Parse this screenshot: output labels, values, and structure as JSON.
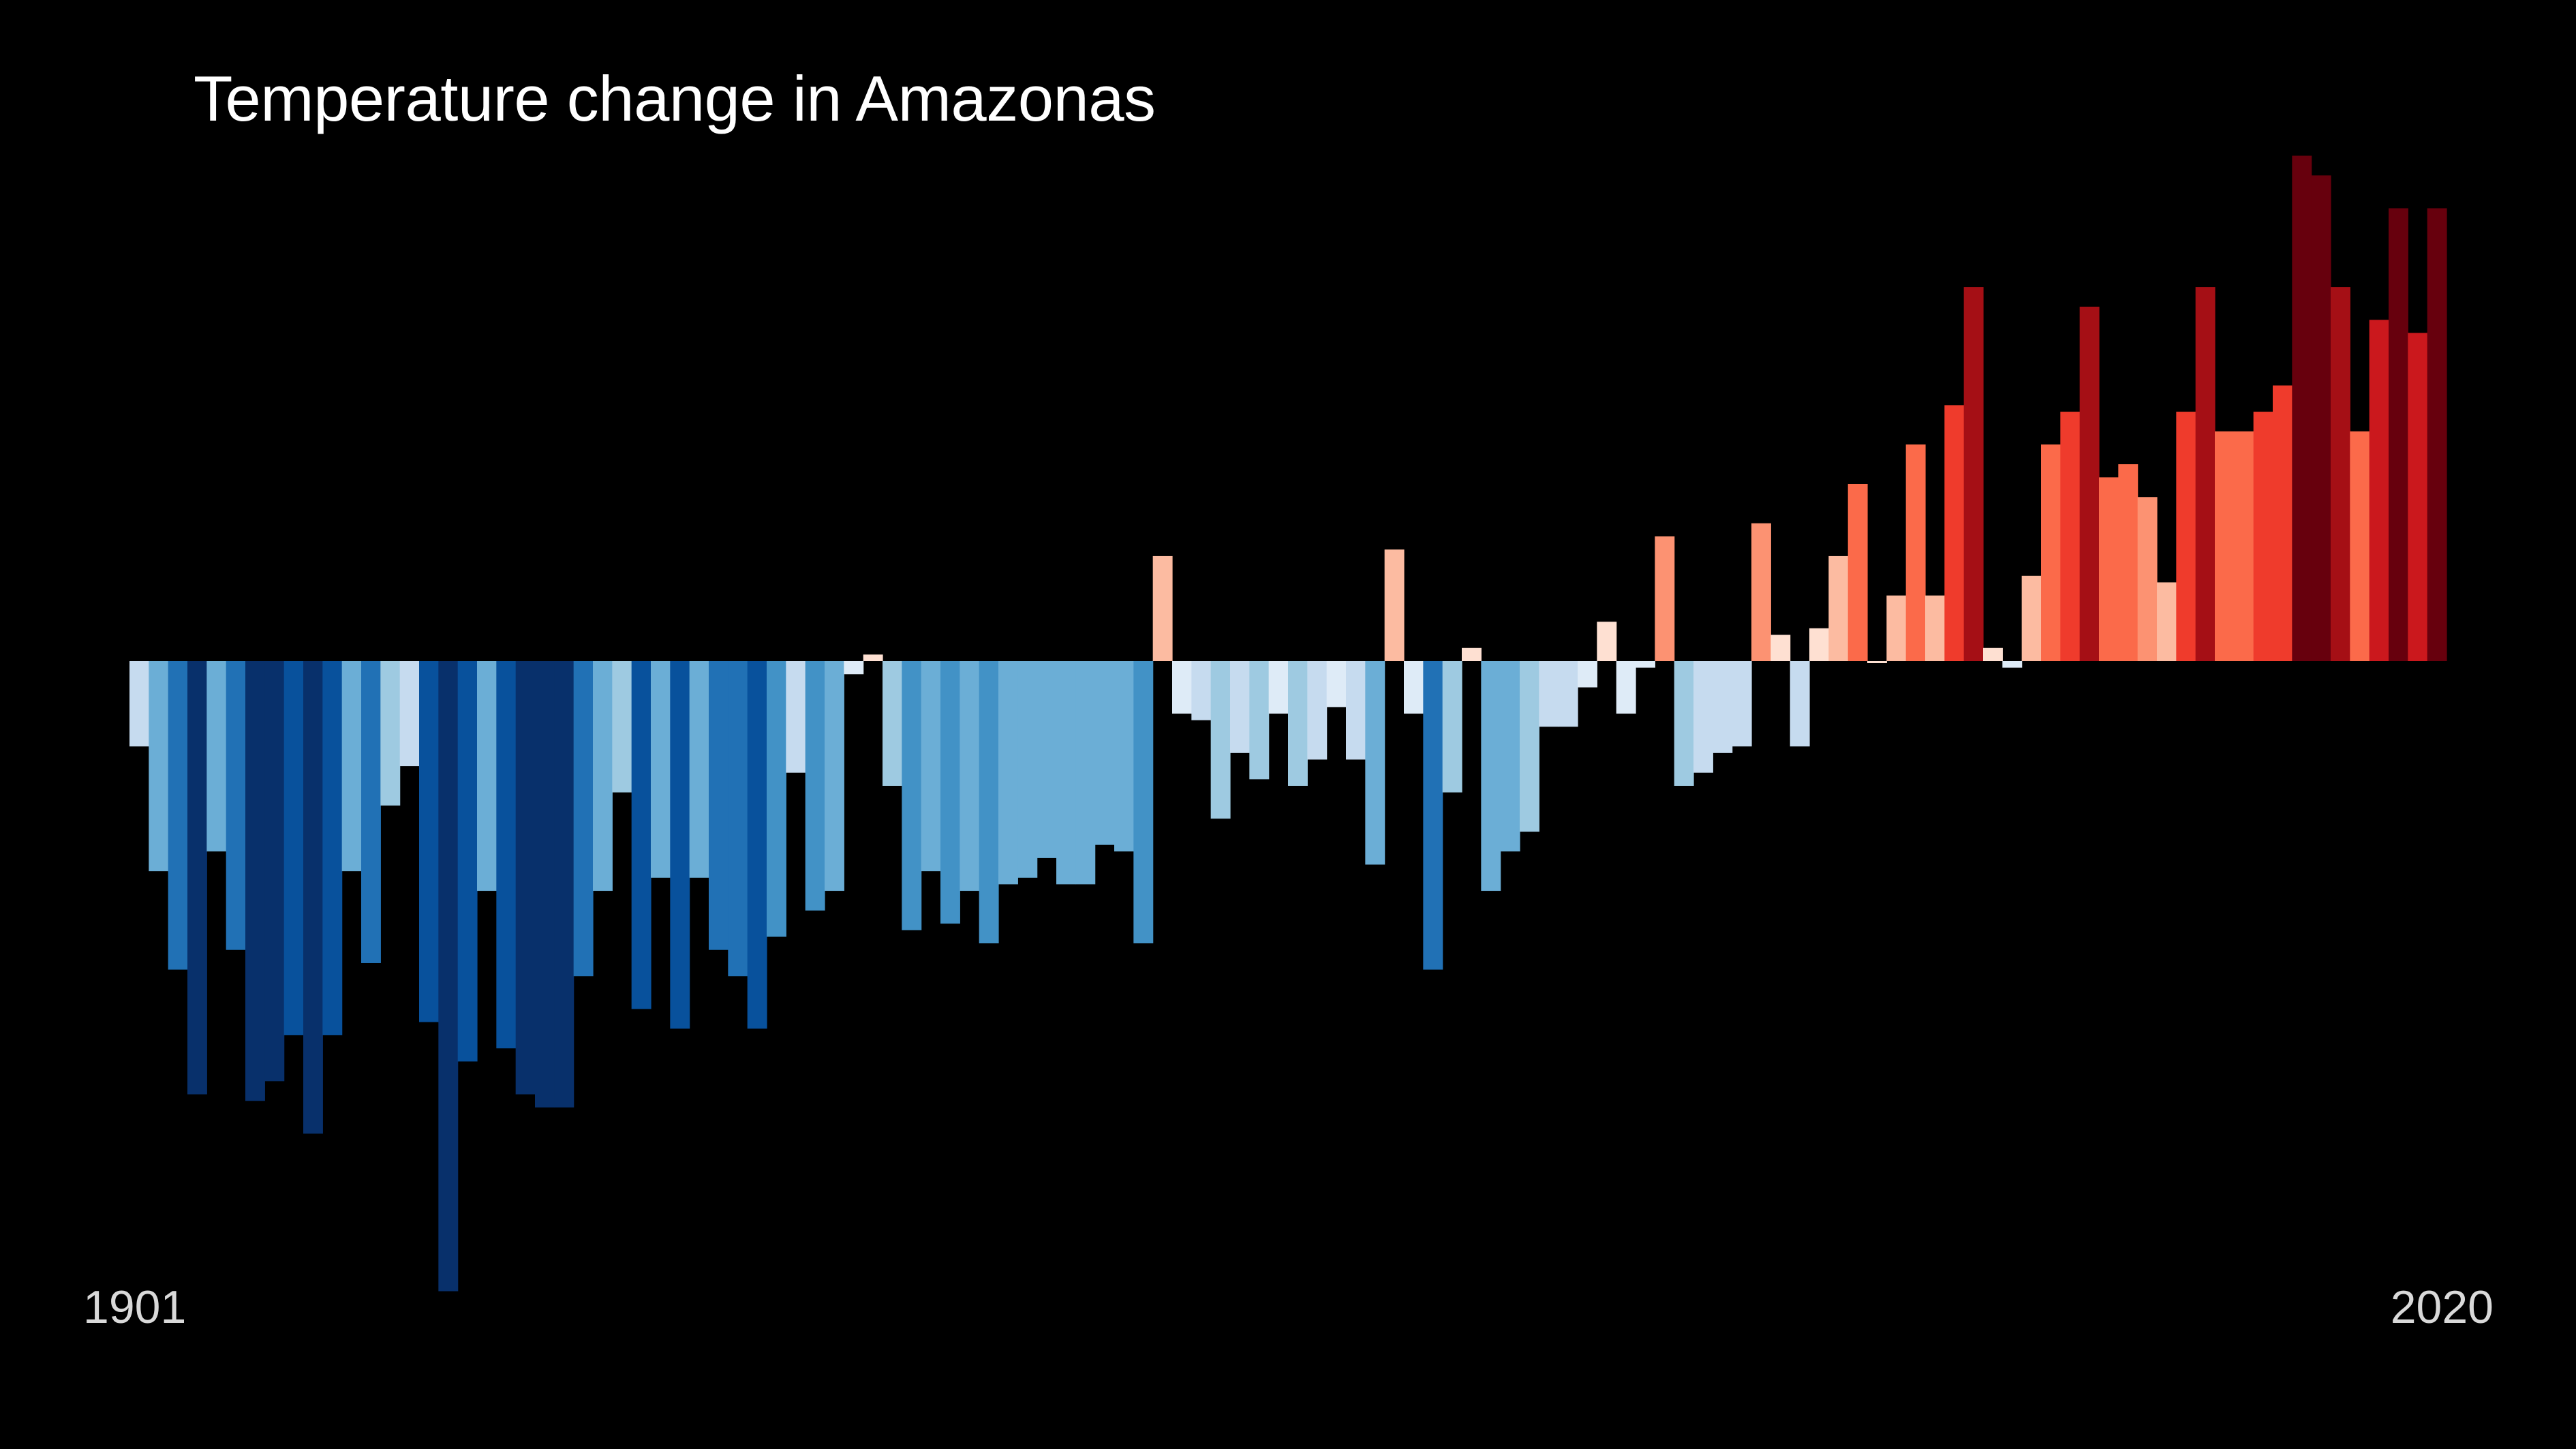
{
  "chart_data": {
    "type": "bar",
    "title": "Temperature change in Amazonas",
    "xlabel": "",
    "ylabel": "",
    "start_year": "1901",
    "end_year": "2020",
    "categories": [
      1901,
      1902,
      1903,
      1904,
      1905,
      1906,
      1907,
      1908,
      1909,
      1910,
      1911,
      1912,
      1913,
      1914,
      1915,
      1916,
      1917,
      1918,
      1919,
      1920,
      1921,
      1922,
      1923,
      1924,
      1925,
      1926,
      1927,
      1928,
      1929,
      1930,
      1931,
      1932,
      1933,
      1934,
      1935,
      1936,
      1937,
      1938,
      1939,
      1940,
      1941,
      1942,
      1943,
      1944,
      1945,
      1946,
      1947,
      1948,
      1949,
      1950,
      1951,
      1952,
      1953,
      1954,
      1955,
      1956,
      1957,
      1958,
      1959,
      1960,
      1961,
      1962,
      1963,
      1964,
      1965,
      1966,
      1967,
      1968,
      1969,
      1970,
      1971,
      1972,
      1973,
      1974,
      1975,
      1976,
      1977,
      1978,
      1979,
      1980,
      1981,
      1982,
      1983,
      1984,
      1985,
      1986,
      1987,
      1988,
      1989,
      1990,
      1991,
      1992,
      1993,
      1994,
      1995,
      1996,
      1997,
      1998,
      1999,
      2000,
      2001,
      2002,
      2003,
      2004,
      2005,
      2006,
      2007,
      2008,
      2009,
      2010,
      2011,
      2012,
      2013,
      2014,
      2015,
      2016,
      2017,
      2018,
      2019,
      2020
    ],
    "values": [
      -0.13,
      -0.32,
      -0.47,
      -0.66,
      -0.29,
      -0.44,
      -0.67,
      -0.64,
      -0.57,
      -0.72,
      -0.57,
      -0.32,
      -0.46,
      -0.22,
      -0.16,
      -0.55,
      -0.96,
      -0.61,
      -0.35,
      -0.59,
      -0.66,
      -0.68,
      -0.68,
      -0.48,
      -0.35,
      -0.2,
      -0.53,
      -0.33,
      -0.56,
      -0.33,
      -0.44,
      -0.48,
      -0.56,
      -0.42,
      -0.17,
      -0.38,
      -0.35,
      -0.02,
      0.01,
      -0.19,
      -0.41,
      -0.32,
      -0.4,
      -0.35,
      -0.43,
      -0.34,
      -0.33,
      -0.3,
      -0.34,
      -0.34,
      -0.28,
      -0.29,
      -0.43,
      0.16,
      -0.08,
      -0.09,
      -0.24,
      -0.14,
      -0.18,
      -0.08,
      -0.19,
      -0.15,
      -0.07,
      -0.15,
      -0.31,
      0.17,
      -0.08,
      -0.47,
      -0.2,
      0.02,
      -0.35,
      -0.29,
      -0.26,
      -0.1,
      -0.1,
      -0.04,
      0.06,
      -0.08,
      -0.01,
      0.19,
      -0.19,
      -0.17,
      -0.14,
      -0.13,
      0.21,
      0.04,
      -0.13,
      0.05,
      0.16,
      0.27,
      0.0,
      0.1,
      0.33,
      0.1,
      0.39,
      0.57,
      0.02,
      -0.01,
      0.13,
      0.33,
      0.38,
      0.54,
      0.28,
      0.3,
      0.25,
      0.12,
      0.38,
      0.57,
      0.35,
      0.35,
      0.38,
      0.42,
      0.77,
      0.74,
      0.57,
      0.35,
      0.52,
      0.69,
      0.5,
      0.69
    ],
    "ylim": [
      -1.0,
      0.8
    ],
    "grid": false,
    "legend": "none",
    "colors": [
      "#08306b",
      "#08519c",
      "#2171b5",
      "#4292c6",
      "#6baed6",
      "#9ecae1",
      "#c6dbef",
      "#deebf7",
      "#fee0d2",
      "#fcbba1",
      "#fc9272",
      "#fb6a4a",
      "#ef3b2c",
      "#cb181d",
      "#a50f15",
      "#67000d"
    ],
    "color_range": [
      -0.7,
      0.7
    ]
  }
}
